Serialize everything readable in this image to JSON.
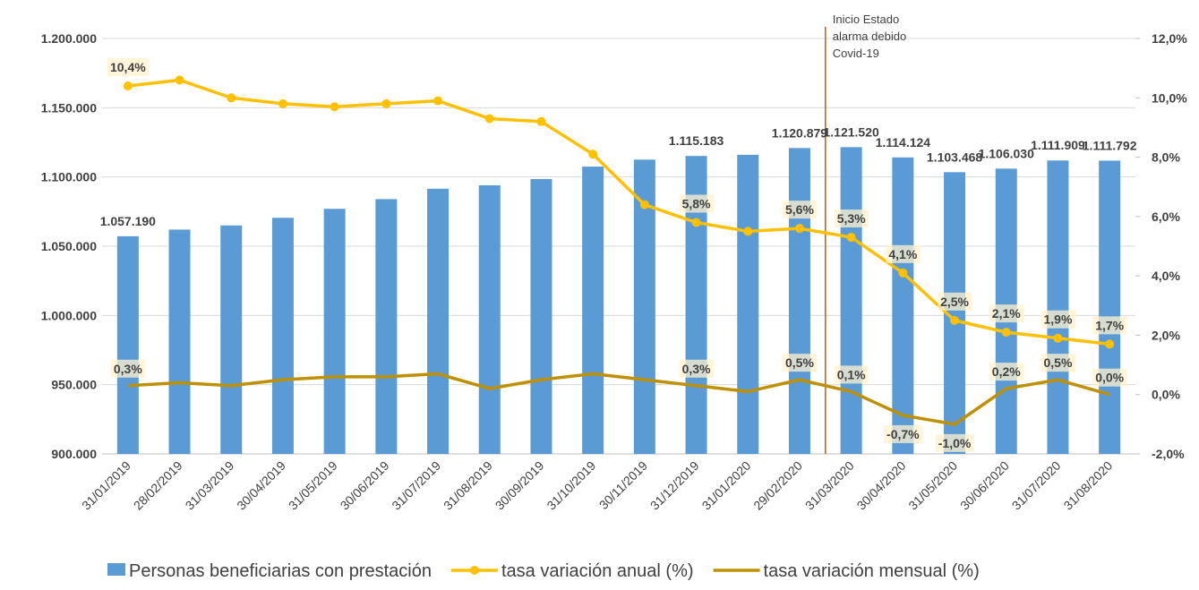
{
  "chart_data": {
    "type": "bar-line",
    "categories": [
      "31/01/2019",
      "28/02/2019",
      "31/03/2019",
      "30/04/2019",
      "31/05/2019",
      "30/06/2019",
      "31/07/2019",
      "31/08/2019",
      "30/09/2019",
      "31/10/2019",
      "30/11/2019",
      "31/12/2019",
      "31/01/2020",
      "29/02/2020",
      "31/03/2020",
      "30/04/2020",
      "31/05/2020",
      "30/06/2020",
      "31/07/2020",
      "31/08/2020"
    ],
    "series": [
      {
        "name": "Personas beneficiarias con prestación",
        "type": "bar",
        "color": "#5b9bd5",
        "values": [
          1057190,
          1062000,
          1065000,
          1070500,
          1077000,
          1084000,
          1091500,
          1094000,
          1098500,
          1107500,
          1112500,
          1115183,
          1116000,
          1120879,
          1121520,
          1114124,
          1103468,
          1106030,
          1111909,
          1111792
        ],
        "value_labels": [
          "1.057.190",
          null,
          null,
          null,
          null,
          null,
          null,
          null,
          null,
          null,
          null,
          "1.115.183",
          null,
          "1.120.879",
          "1.121.520",
          "1.114.124",
          "1.103.468",
          "1.106.030",
          "1.111.909",
          "1.111.792"
        ]
      },
      {
        "name": "tasa variación anual (%)",
        "type": "line",
        "axis": "y2",
        "color": "#ffc000",
        "markers": true,
        "values": [
          10.4,
          10.6,
          10.0,
          9.8,
          9.7,
          9.8,
          9.9,
          9.3,
          9.2,
          8.1,
          6.4,
          5.8,
          5.5,
          5.6,
          5.3,
          4.1,
          2.5,
          2.1,
          1.9,
          1.7
        ],
        "value_labels": [
          "10,4%",
          null,
          null,
          null,
          null,
          null,
          null,
          null,
          null,
          null,
          null,
          "5,8%",
          null,
          "5,6%",
          "5,3%",
          "4,1%",
          "2,5%",
          "2,1%",
          "1,9%",
          "1,7%"
        ]
      },
      {
        "name": "tasa variación mensual (%)",
        "type": "line",
        "axis": "y2",
        "color": "#bf9000",
        "markers": false,
        "values": [
          0.3,
          0.4,
          0.3,
          0.5,
          0.6,
          0.6,
          0.7,
          0.2,
          0.5,
          0.7,
          0.5,
          0.3,
          0.1,
          0.5,
          0.1,
          -0.7,
          -1.0,
          0.2,
          0.5,
          0.0
        ],
        "value_labels": [
          "0,3%",
          null,
          null,
          null,
          null,
          null,
          null,
          null,
          null,
          null,
          null,
          "0,3%",
          null,
          "0,5%",
          "0,1%",
          "-0,7%",
          "-1,0%",
          "0,2%",
          "0,5%",
          "0,0%"
        ]
      }
    ],
    "ylim": [
      900000,
      1200000
    ],
    "yticks": [
      {
        "value": 900000,
        "label": "900.000"
      },
      {
        "value": 950000,
        "label": "950.000"
      },
      {
        "value": 1000000,
        "label": "1.000.000"
      },
      {
        "value": 1050000,
        "label": "1.050.000"
      },
      {
        "value": 1100000,
        "label": "1.100.000"
      },
      {
        "value": 1150000,
        "label": "1.150.000"
      },
      {
        "value": 1200000,
        "label": "1.200.000"
      }
    ],
    "y2lim": [
      -2,
      12
    ],
    "y2ticks": [
      {
        "value": -2,
        "label": "-2,0%"
      },
      {
        "value": 0,
        "label": "0,0%"
      },
      {
        "value": 2,
        "label": "2,0%"
      },
      {
        "value": 4,
        "label": "4,0%"
      },
      {
        "value": 6,
        "label": "6,0%"
      },
      {
        "value": 8,
        "label": "8,0%"
      },
      {
        "value": 10,
        "label": "10,0%"
      },
      {
        "value": 12,
        "label": "12,0%"
      }
    ],
    "grid": true,
    "legend": "bottom",
    "annotation": {
      "text": [
        "Inicio Estado",
        "alarma debido",
        "Covid-19"
      ],
      "after_category": 13
    }
  }
}
